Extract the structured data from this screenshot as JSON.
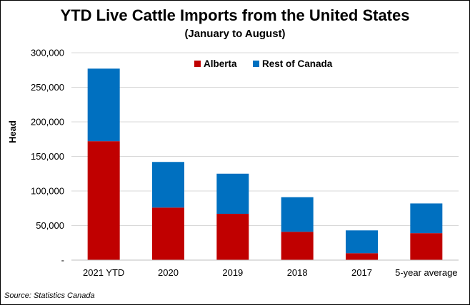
{
  "chart_data": {
    "type": "bar",
    "stacked": true,
    "title": "YTD Live Cattle Imports from the United States",
    "subtitle": "(January to August)",
    "xlabel": "",
    "ylabel": "Head",
    "ylim": [
      0,
      300000
    ],
    "yticks": [
      0,
      50000,
      100000,
      150000,
      200000,
      250000,
      300000
    ],
    "ytick_labels": [
      "-",
      "50,000",
      "100,000",
      "150,000",
      "200,000",
      "250,000",
      "300,000"
    ],
    "categories": [
      "2021 YTD",
      "2020",
      "2019",
      "2018",
      "2017",
      "5-year average"
    ],
    "series": [
      {
        "name": "Alberta",
        "color": "#C00000",
        "values": [
          172000,
          76000,
          67000,
          41000,
          10000,
          39000
        ]
      },
      {
        "name": "Rest of Canada",
        "color": "#0070C0",
        "values": [
          105000,
          66000,
          58000,
          50000,
          33000,
          43000
        ]
      }
    ],
    "grid": true,
    "legend_position": "top-center",
    "source": "Source: Statistics Canada"
  }
}
